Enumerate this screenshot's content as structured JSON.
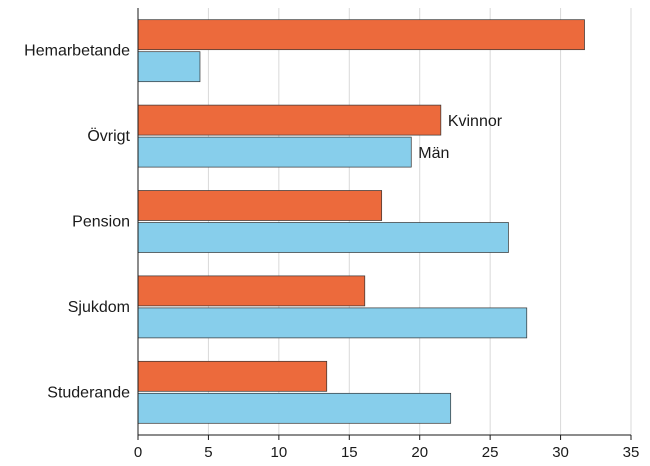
{
  "chart_data": {
    "type": "bar",
    "orientation": "horizontal",
    "categories": [
      "Hemarbetande",
      "Övrigt",
      "Pension",
      "Sjukdom",
      "Studerande"
    ],
    "series": [
      {
        "name": "Kvinnor",
        "values": [
          31.7,
          21.5,
          17.3,
          16.1,
          13.4
        ]
      },
      {
        "name": "Män",
        "values": [
          4.4,
          19.4,
          26.3,
          27.6,
          22.2
        ]
      }
    ],
    "xlim": [
      0,
      35
    ],
    "xticks": [
      0,
      5,
      10,
      15,
      20,
      25,
      30,
      35
    ],
    "grid": "vertical",
    "legend": "inline labels next to Övrigt bars",
    "colors": {
      "Kvinnor": "#ec6a3c",
      "Män": "#87ceeb",
      "grid": "#d9d9d9",
      "axis": "#1a1a1a"
    }
  }
}
